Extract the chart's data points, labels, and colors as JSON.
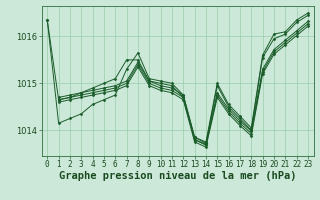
{
  "background_color": "#cce8d8",
  "grid_color": "#99ccaa",
  "line_color": "#1a5c2a",
  "xlabel": "Graphe pression niveau de la mer (hPa)",
  "xlabel_fontsize": 7.5,
  "ylabel_ticks": [
    1014,
    1015,
    1016
  ],
  "xlim": [
    -0.5,
    23.5
  ],
  "ylim": [
    1013.45,
    1016.65
  ],
  "series": [
    {
      "x": [
        0,
        1,
        2,
        3,
        4,
        5,
        6,
        7,
        8,
        9,
        10,
        11,
        12,
        13,
        14,
        15,
        16,
        17,
        18,
        19,
        20,
        21,
        22,
        23
      ],
      "y": [
        1016.35,
        1014.15,
        1014.25,
        1014.35,
        1014.55,
        1014.65,
        1014.75,
        1015.3,
        1015.65,
        1015.1,
        1015.05,
        1015.0,
        1014.75,
        1013.85,
        1013.75,
        1015.0,
        1014.55,
        1014.3,
        1014.05,
        1015.6,
        1016.05,
        1016.1,
        1016.35,
        1016.5
      ]
    },
    {
      "x": [
        0,
        1,
        2,
        3,
        4,
        5,
        6,
        7,
        8,
        9,
        10,
        11,
        12,
        13,
        14,
        15,
        16,
        17,
        18,
        19,
        20,
        21,
        22,
        23
      ],
      "y": [
        1016.35,
        1014.65,
        1014.7,
        1014.8,
        1014.9,
        1015.0,
        1015.1,
        1015.5,
        1015.5,
        1015.05,
        1015.0,
        1014.95,
        1014.7,
        1013.8,
        1013.7,
        1014.95,
        1014.5,
        1014.25,
        1014.0,
        1015.55,
        1015.95,
        1016.05,
        1016.3,
        1016.45
      ]
    },
    {
      "x": [
        1,
        2,
        3,
        4,
        5,
        6,
        7,
        8,
        9,
        10,
        11,
        12,
        13,
        14,
        15,
        16,
        17,
        18,
        19,
        20,
        21,
        22,
        23
      ],
      "y": [
        1014.7,
        1014.75,
        1014.8,
        1014.85,
        1014.9,
        1014.95,
        1015.05,
        1015.45,
        1015.05,
        1014.95,
        1014.9,
        1014.75,
        1013.85,
        1013.72,
        1014.8,
        1014.45,
        1014.2,
        1013.98,
        1015.3,
        1015.72,
        1015.92,
        1016.12,
        1016.32
      ]
    },
    {
      "x": [
        1,
        2,
        3,
        4,
        5,
        6,
        7,
        8,
        9,
        10,
        11,
        12,
        13,
        14,
        15,
        16,
        17,
        18,
        19,
        20,
        21,
        22,
        23
      ],
      "y": [
        1014.65,
        1014.7,
        1014.75,
        1014.8,
        1014.85,
        1014.9,
        1015.0,
        1015.4,
        1015.0,
        1014.9,
        1014.85,
        1014.7,
        1013.8,
        1013.68,
        1014.75,
        1014.4,
        1014.15,
        1013.93,
        1015.25,
        1015.67,
        1015.87,
        1016.07,
        1016.27
      ]
    },
    {
      "x": [
        1,
        2,
        3,
        4,
        5,
        6,
        7,
        8,
        9,
        10,
        11,
        12,
        13,
        14,
        15,
        16,
        17,
        18,
        19,
        20,
        21,
        22,
        23
      ],
      "y": [
        1014.6,
        1014.65,
        1014.7,
        1014.75,
        1014.8,
        1014.85,
        1014.95,
        1015.35,
        1014.95,
        1014.85,
        1014.8,
        1014.65,
        1013.75,
        1013.64,
        1014.7,
        1014.35,
        1014.1,
        1013.88,
        1015.2,
        1015.62,
        1015.82,
        1016.02,
        1016.22
      ]
    }
  ],
  "marker": "D",
  "marker_size": 1.5,
  "linewidth": 0.7,
  "tick_fontsize": 5.5,
  "ylabel_fontsize": 6.0
}
